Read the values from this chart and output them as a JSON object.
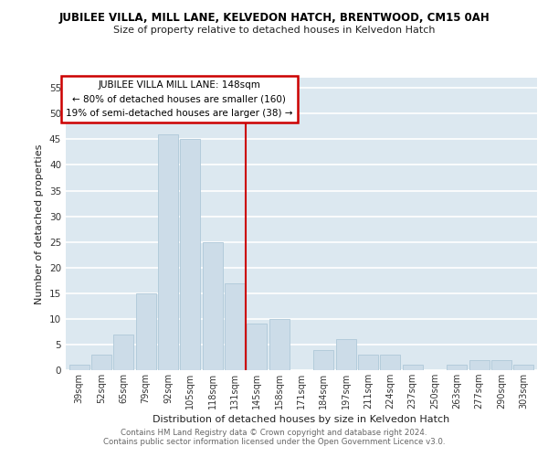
{
  "title": "JUBILEE VILLA, MILL LANE, KELVEDON HATCH, BRENTWOOD, CM15 0AH",
  "subtitle": "Size of property relative to detached houses in Kelvedon Hatch",
  "xlabel": "Distribution of detached houses by size in Kelvedon Hatch",
  "ylabel": "Number of detached properties",
  "bar_labels": [
    "39sqm",
    "52sqm",
    "65sqm",
    "79sqm",
    "92sqm",
    "105sqm",
    "118sqm",
    "131sqm",
    "145sqm",
    "158sqm",
    "171sqm",
    "184sqm",
    "197sqm",
    "211sqm",
    "224sqm",
    "237sqm",
    "250sqm",
    "263sqm",
    "277sqm",
    "290sqm",
    "303sqm"
  ],
  "bar_values": [
    1,
    3,
    7,
    15,
    46,
    45,
    25,
    17,
    9,
    10,
    0,
    4,
    6,
    3,
    3,
    1,
    0,
    1,
    2,
    2,
    1
  ],
  "bar_color": "#ccdce8",
  "bar_edge_color": "#aec8d8",
  "property_line_label": "JUBILEE VILLA MILL LANE: 148sqm",
  "annotation_line1": "← 80% of detached houses are smaller (160)",
  "annotation_line2": "19% of semi-detached houses are larger (38) →",
  "ylim": [
    0,
    57
  ],
  "yticks": [
    0,
    5,
    10,
    15,
    20,
    25,
    30,
    35,
    40,
    45,
    50,
    55
  ],
  "bg_color": "#ffffff",
  "plot_bg_color": "#dce8f0",
  "grid_color": "#ffffff",
  "footer1": "Contains HM Land Registry data © Crown copyright and database right 2024.",
  "footer2": "Contains public sector information licensed under the Open Government Licence v3.0."
}
